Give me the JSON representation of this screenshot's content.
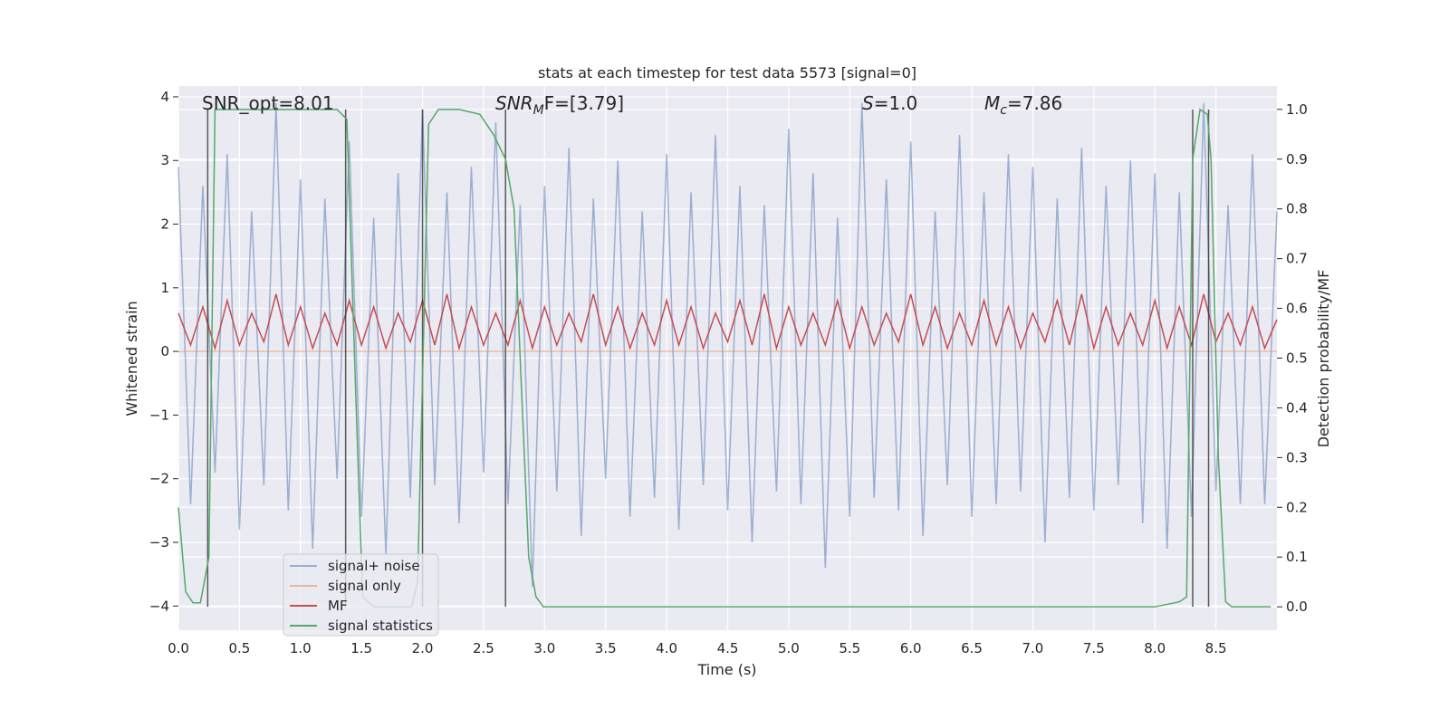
{
  "chart_data": {
    "type": "line",
    "title": "stats at each timestep for test data 5573 [signal=0]",
    "xlabel": "Time (s)",
    "ylabel": "Whitened strain",
    "y2label": "Detection probability/MF",
    "xlim": [
      0,
      9.0
    ],
    "ylim": [
      -4.38,
      4.17
    ],
    "y2lim": [
      -0.047,
      1.047
    ],
    "xticks": [
      {
        "value": 0,
        "label": "0.0"
      },
      0.5,
      {
        "value": 1,
        "label": "1.0"
      },
      1.5,
      {
        "value": 2,
        "label": "2.0"
      },
      2.5,
      {
        "value": 3,
        "label": "3.0"
      },
      3.5,
      {
        "value": 4,
        "label": "4.0"
      },
      4.5,
      {
        "value": 5,
        "label": "5.0"
      },
      5.5,
      {
        "value": 6,
        "label": "6.0"
      },
      6.5,
      {
        "value": 7,
        "label": "7.0"
      },
      7.5,
      {
        "value": 8,
        "label": "8.0"
      },
      8.5
    ],
    "yticks": [
      {
        "value": -4,
        "label": "−4"
      },
      {
        "value": -3,
        "label": "−3"
      },
      {
        "value": -2,
        "label": "−2"
      },
      {
        "value": -1,
        "label": "−1"
      },
      0,
      1,
      2,
      3,
      4
    ],
    "y2ticks": [
      {
        "value": 0,
        "label": "0.0"
      },
      0.1,
      0.2,
      0.3,
      0.4,
      0.5,
      0.6,
      0.7,
      0.8,
      0.9,
      {
        "value": 1,
        "label": "1.0"
      }
    ],
    "grid": true,
    "annotations": [
      {
        "base": "SNR_opt=8.01"
      },
      {
        "base": "SNR",
        "sub": "M",
        "rest": "F=[3.79]"
      },
      {
        "base": "S",
        "rest": "=1.0"
      },
      {
        "base": "M",
        "sub": "c",
        "rest": "=7.86"
      }
    ],
    "vlines": [
      0.24,
      1.37,
      2.0,
      2.68,
      8.31,
      8.44
    ],
    "x": [
      0.0,
      0.1,
      0.2,
      0.3,
      0.4,
      0.5,
      0.6,
      0.7,
      0.8,
      0.9,
      1.0,
      1.1,
      1.2,
      1.3,
      1.4,
      1.5,
      1.6,
      1.7,
      1.8,
      1.9,
      2.0,
      2.1,
      2.2,
      2.3,
      2.4,
      2.5,
      2.6,
      2.7,
      2.8,
      2.9,
      3.0,
      3.1,
      3.2,
      3.3,
      3.4,
      3.5,
      3.6,
      3.7,
      3.8,
      3.9,
      4.0,
      4.1,
      4.2,
      4.3,
      4.4,
      4.5,
      4.6,
      4.7,
      4.8,
      4.9,
      5.0,
      5.1,
      5.2,
      5.3,
      5.4,
      5.5,
      5.6,
      5.7,
      5.8,
      5.9,
      6.0,
      6.1,
      6.2,
      6.3,
      6.4,
      6.5,
      6.6,
      6.7,
      6.8,
      6.9,
      7.0,
      7.1,
      7.2,
      7.3,
      7.4,
      7.5,
      7.6,
      7.7,
      7.8,
      7.9,
      8.0,
      8.1,
      8.2,
      8.3,
      8.4,
      8.5,
      8.6,
      8.7,
      8.8,
      8.9,
      9.0
    ],
    "series": [
      {
        "name": "signal+ noise",
        "color": "#4c72b0",
        "values": [
          2.9,
          -2.4,
          2.6,
          -1.9,
          3.1,
          -2.8,
          2.2,
          -2.1,
          3.9,
          -2.5,
          2.7,
          -3.1,
          2.4,
          -2.0,
          3.3,
          -2.6,
          2.1,
          -3.2,
          2.8,
          -2.3,
          3.8,
          -2.1,
          2.5,
          -2.7,
          2.9,
          -1.9,
          3.6,
          -2.4,
          2.3,
          -3.7,
          2.6,
          -2.2,
          3.2,
          -2.9,
          2.4,
          -2.0,
          3.0,
          -2.6,
          2.2,
          -2.3,
          3.1,
          -2.8,
          2.5,
          -2.1,
          3.4,
          -2.5,
          2.6,
          -3.0,
          2.3,
          -2.2,
          3.5,
          -2.4,
          2.8,
          -3.4,
          2.1,
          -2.6,
          3.9,
          -2.3,
          2.7,
          -2.5,
          3.3,
          -2.9,
          2.2,
          -2.1,
          3.4,
          -2.6,
          2.5,
          -2.4,
          3.1,
          -2.2,
          2.9,
          -3.0,
          2.4,
          -2.3,
          3.2,
          -2.5,
          2.6,
          -2.1,
          3.0,
          -2.7,
          2.8,
          -3.1,
          2.5,
          -2.6,
          3.9,
          -2.2,
          2.3,
          -2.4,
          3.1,
          -2.4,
          2.2
        ]
      },
      {
        "name": "signal only",
        "color": "#dd8452",
        "values": [
          0,
          0,
          0,
          0,
          0,
          0,
          0,
          0,
          0,
          0,
          0,
          0,
          0,
          0,
          0,
          0,
          0,
          0,
          0,
          0,
          0,
          0,
          0,
          0,
          0,
          0,
          0,
          0,
          0,
          0,
          0,
          0,
          0,
          0,
          0,
          0,
          0,
          0,
          0,
          0,
          0,
          0,
          0,
          0,
          0,
          0,
          0,
          0,
          0,
          0,
          0,
          0,
          0,
          0,
          0,
          0,
          0,
          0,
          0,
          0,
          0,
          0,
          0,
          0,
          0,
          0,
          0,
          0,
          0,
          0,
          0,
          0,
          0,
          0,
          0,
          0,
          0,
          0,
          0,
          0,
          0,
          0,
          0,
          0,
          0,
          0,
          0,
          0,
          0,
          0,
          0
        ]
      },
      {
        "name": "MF",
        "color": "#c44e52",
        "values": [
          0.6,
          0.1,
          0.7,
          0.05,
          0.8,
          0.1,
          0.6,
          0.15,
          0.9,
          0.1,
          0.7,
          0.05,
          0.6,
          0.1,
          0.8,
          0.1,
          0.7,
          0.05,
          0.6,
          0.15,
          0.8,
          0.1,
          0.9,
          0.05,
          0.7,
          0.1,
          0.6,
          0.1,
          0.8,
          0.05,
          0.7,
          0.1,
          0.6,
          0.15,
          0.9,
          0.1,
          0.7,
          0.05,
          0.6,
          0.1,
          0.8,
          0.1,
          0.7,
          0.05,
          0.6,
          0.15,
          0.8,
          0.1,
          0.9,
          0.05,
          0.7,
          0.1,
          0.6,
          0.1,
          0.8,
          0.05,
          0.7,
          0.1,
          0.6,
          0.15,
          0.9,
          0.1,
          0.7,
          0.05,
          0.6,
          0.1,
          0.8,
          0.1,
          0.7,
          0.05,
          0.6,
          0.15,
          0.8,
          0.1,
          0.9,
          0.05,
          0.7,
          0.1,
          0.6,
          0.1,
          0.8,
          0.05,
          0.7,
          0.1,
          0.9,
          0.15,
          0.6,
          0.1,
          0.7,
          0.05,
          0.5
        ]
      },
      {
        "name": "signal statistics",
        "color": "#55a868",
        "axis": "y2",
        "x": [
          0.0,
          0.06,
          0.12,
          0.18,
          0.25,
          0.3,
          0.5,
          1.0,
          1.3,
          1.38,
          1.47,
          1.51,
          1.6,
          1.8,
          1.91,
          1.96,
          2.05,
          2.13,
          2.3,
          2.47,
          2.58,
          2.68,
          2.75,
          2.8,
          2.87,
          2.93,
          2.99,
          4.0,
          5.0,
          6.0,
          7.0,
          8.0,
          8.2,
          8.26,
          8.31,
          8.37,
          8.43,
          8.46,
          8.52,
          8.58,
          8.63,
          8.95
        ],
        "values": [
          0.2,
          0.03,
          0.008,
          0.008,
          0.1,
          1.0,
          1.0,
          1.0,
          1.0,
          0.98,
          0.3,
          0.02,
          0.0,
          0.0,
          0.0,
          0.05,
          0.97,
          1.0,
          1.0,
          0.99,
          0.95,
          0.9,
          0.8,
          0.5,
          0.1,
          0.02,
          0.0,
          0.0,
          0.0,
          0.0,
          0.0,
          0.0,
          0.01,
          0.02,
          0.9,
          1.0,
          0.99,
          0.9,
          0.3,
          0.01,
          0.0,
          0.0
        ]
      }
    ]
  }
}
